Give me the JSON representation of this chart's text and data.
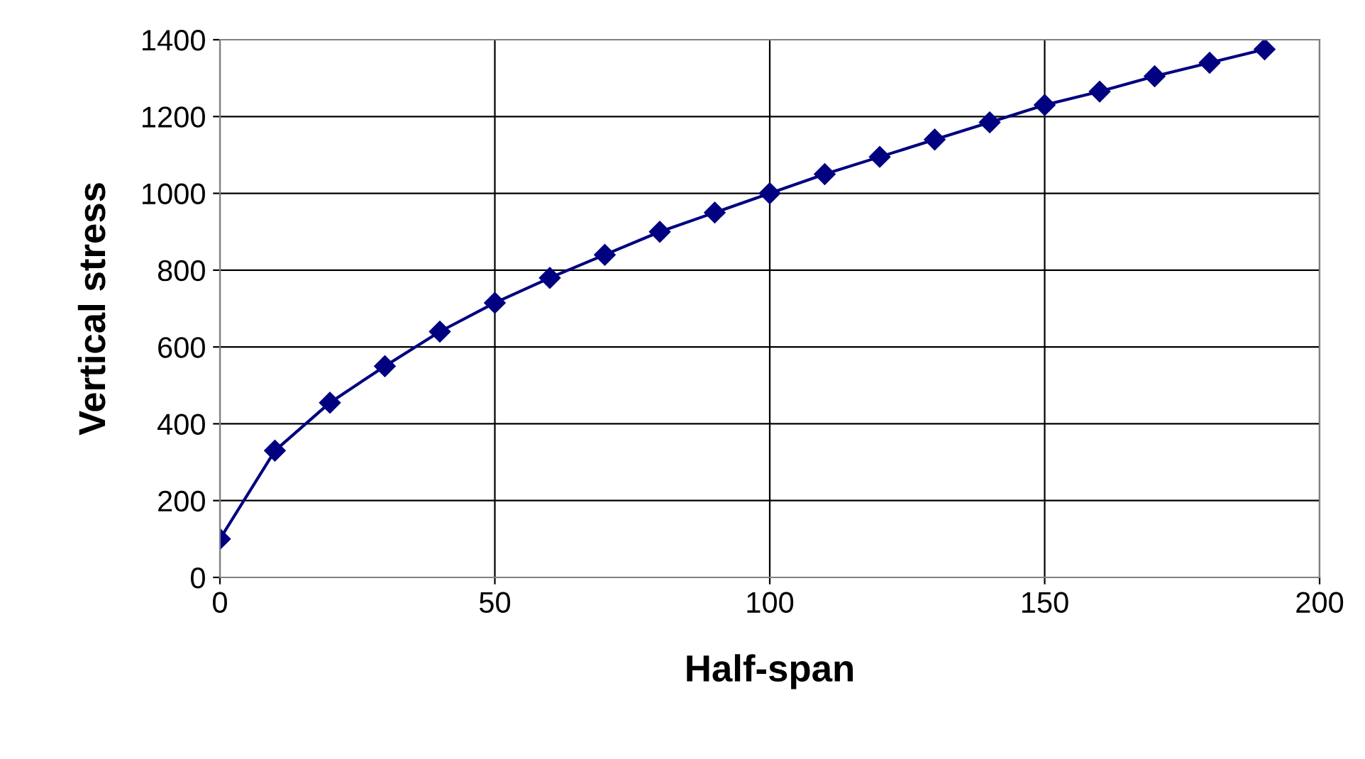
{
  "chart_data": {
    "type": "line",
    "xlabel": "Half-span",
    "ylabel": "Vertical stress",
    "x": [
      0,
      10,
      20,
      30,
      40,
      50,
      60,
      70,
      80,
      90,
      100,
      110,
      120,
      130,
      140,
      150,
      160,
      170,
      180,
      190
    ],
    "series": [
      {
        "color": "#000080",
        "values": [
          100,
          330,
          455,
          550,
          640,
          715,
          780,
          840,
          900,
          950,
          1000,
          1050,
          1095,
          1140,
          1185,
          1230,
          1265,
          1305,
          1340,
          1375
        ]
      }
    ],
    "xlim": [
      0,
      200
    ],
    "xticks": [
      0,
      50,
      100,
      150,
      200
    ],
    "ylim": [
      0,
      1400
    ],
    "yticks": [
      0,
      200,
      400,
      600,
      800,
      1000,
      1200,
      1400
    ],
    "grid": true,
    "marker": "diamond",
    "line_style": "solid",
    "legend": false
  }
}
